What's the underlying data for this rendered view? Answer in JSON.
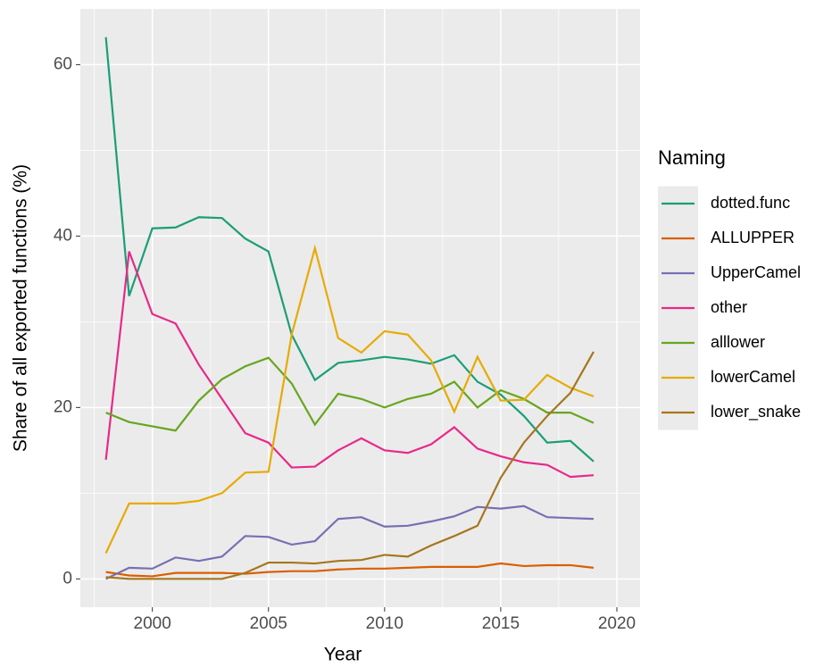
{
  "chart_data": {
    "type": "line",
    "x_label": "Year",
    "y_label": "Share of all exported functions (%)",
    "legend_title": "Naming",
    "legend_position": "right",
    "grid": true,
    "x": [
      1998,
      1999,
      2000,
      2001,
      2002,
      2003,
      2004,
      2005,
      2006,
      2007,
      2008,
      2009,
      2010,
      2011,
      2012,
      2013,
      2014,
      2015,
      2016,
      2017,
      2018,
      2019
    ],
    "xlim": [
      1996.9,
      2021.0
    ],
    "xticks": [
      2000,
      2005,
      2010,
      2015,
      2020
    ],
    "x_minor_ticks": [
      1997.5,
      2002.5,
      2007.5,
      2012.5,
      2017.5
    ],
    "ylim": [
      -3.3,
      66.5
    ],
    "yticks": [
      0,
      20,
      40,
      60
    ],
    "y_minor_ticks": [
      10,
      30,
      50
    ],
    "series": [
      {
        "name": "dotted.func",
        "color": "#1b9e77",
        "values": [
          63.2,
          33,
          40.9,
          41,
          42.2,
          42.1,
          39.7,
          38.2,
          28.5,
          23.2,
          25.2,
          25.5,
          25.9,
          25.6,
          25.1,
          26.1,
          23,
          21.5,
          19,
          15.9,
          16.1,
          13.7
        ]
      },
      {
        "name": "ALLUPPER",
        "color": "#d95f02",
        "values": [
          0.8,
          0.4,
          0.3,
          0.7,
          0.7,
          0.7,
          0.6,
          0.8,
          0.9,
          0.9,
          1.1,
          1.2,
          1.2,
          1.3,
          1.4,
          1.4,
          1.4,
          1.8,
          1.5,
          1.6,
          1.6,
          1.3
        ]
      },
      {
        "name": "UpperCamel",
        "color": "#7570b3",
        "values": [
          0,
          1.3,
          1.2,
          2.5,
          2.1,
          2.6,
          5,
          4.9,
          4,
          4.4,
          7,
          7.2,
          6.1,
          6.2,
          6.7,
          7.3,
          8.4,
          8.2,
          8.5,
          7.2,
          7.1,
          7.0
        ]
      },
      {
        "name": "other",
        "color": "#e7298a",
        "values": [
          13.9,
          38.2,
          30.9,
          29.8,
          25,
          21,
          17,
          15.9,
          13,
          13.1,
          15,
          16.4,
          15,
          14.7,
          15.7,
          17.7,
          15.2,
          14.3,
          13.6,
          13.3,
          11.9,
          12.1
        ]
      },
      {
        "name": "alllower",
        "color": "#66a61e",
        "values": [
          19.4,
          18.3,
          17.8,
          17.3,
          20.8,
          23.3,
          24.8,
          25.8,
          22.8,
          18,
          21.6,
          21,
          20,
          21,
          21.6,
          23,
          20,
          22,
          21,
          19.4,
          19.4,
          18.2
        ]
      },
      {
        "name": "lowerCamel",
        "color": "#e6ab02",
        "values": [
          3,
          8.8,
          8.8,
          8.8,
          9.1,
          10,
          12.4,
          12.5,
          28.5,
          38.6,
          28.1,
          26.4,
          28.9,
          28.5,
          25.5,
          19.5,
          25.9,
          20.8,
          20.9,
          23.8,
          22.3,
          21.3
        ]
      },
      {
        "name": "lower_snake",
        "color": "#a6761d",
        "values": [
          0.2,
          0,
          0,
          0,
          0,
          0,
          0.7,
          1.9,
          1.9,
          1.8,
          2.1,
          2.2,
          2.8,
          2.6,
          3.9,
          5,
          6.2,
          11.8,
          15.9,
          19,
          21.7,
          26.5
        ]
      }
    ]
  }
}
